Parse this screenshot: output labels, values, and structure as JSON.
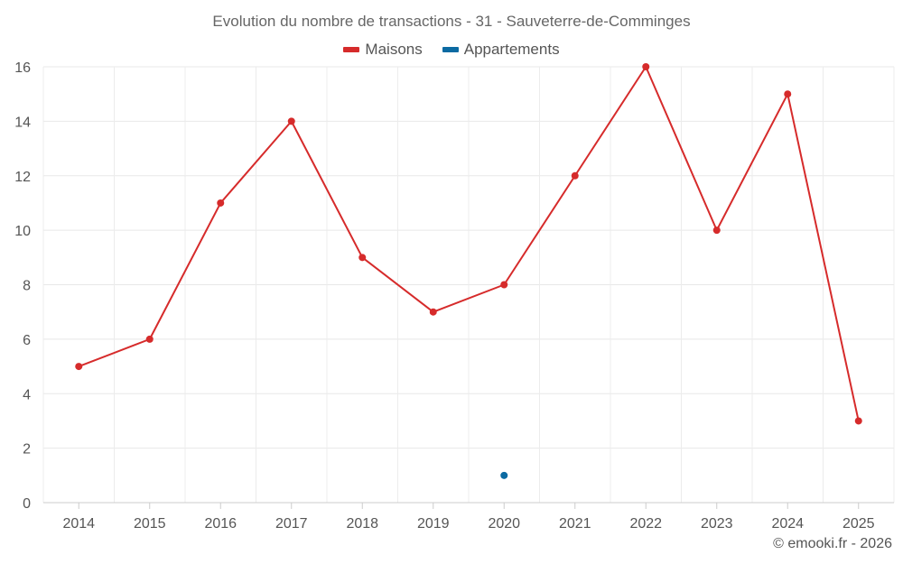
{
  "chart_data": {
    "type": "line",
    "title": "Evolution du nombre de transactions - 31 - Sauveterre-de-Comminges",
    "categories": [
      "2014",
      "2015",
      "2016",
      "2017",
      "2018",
      "2019",
      "2020",
      "2021",
      "2022",
      "2023",
      "2024",
      "2025"
    ],
    "series": [
      {
        "name": "Maisons",
        "color": "#d62b2b",
        "values": [
          5,
          6,
          11,
          14,
          9,
          7,
          8,
          12,
          16,
          10,
          15,
          3
        ]
      },
      {
        "name": "Appartements",
        "color": "#0b6aa2",
        "values": [
          null,
          null,
          null,
          null,
          null,
          null,
          1,
          null,
          null,
          null,
          null,
          null
        ]
      }
    ],
    "xlabel": "",
    "ylabel": "",
    "ylim": [
      0,
      16
    ],
    "yticks": [
      0,
      2,
      4,
      6,
      8,
      10,
      12,
      14,
      16
    ],
    "grid": true,
    "legend": "top-center"
  },
  "credit": "© emooki.fr - 2026"
}
